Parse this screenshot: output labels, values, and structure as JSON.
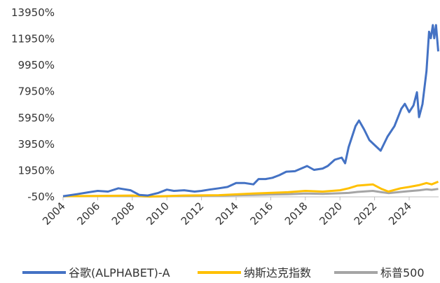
{
  "chart_data": {
    "type": "line",
    "xlim": [
      2004,
      2025.7
    ],
    "xticks": [
      2004,
      2006,
      2008,
      2010,
      2012,
      2014,
      2016,
      2018,
      2020,
      2022,
      2024
    ],
    "ylim": [
      -50,
      13950
    ],
    "yticks": [
      {
        "value": -50,
        "label": "-50%"
      },
      {
        "value": 1950,
        "label": "1950%"
      },
      {
        "value": 3950,
        "label": "3950%"
      },
      {
        "value": 5950,
        "label": "5950%"
      },
      {
        "value": 7950,
        "label": "7950%"
      },
      {
        "value": 9950,
        "label": "9950%"
      },
      {
        "value": 11950,
        "label": "11950%"
      },
      {
        "value": 13950,
        "label": "13950%"
      }
    ],
    "legend": "bottom",
    "series": [
      {
        "name": "谷歌(ALPHABET)-A",
        "color": "#4472c4",
        "x": [
          2004.0,
          2004.8,
          2005.5,
          2006.0,
          2006.6,
          2007.2,
          2007.9,
          2008.4,
          2008.9,
          2009.5,
          2010.0,
          2010.4,
          2011.0,
          2011.6,
          2012.0,
          2012.45,
          2013.0,
          2013.5,
          2014.0,
          2014.5,
          2015.0,
          2015.3,
          2015.7,
          2016.1,
          2016.5,
          2016.9,
          2017.4,
          2018.1,
          2018.5,
          2019.0,
          2019.3,
          2019.7,
          2020.1,
          2020.3,
          2020.5,
          2020.9,
          2021.1,
          2021.4,
          2021.7,
          2022.0,
          2022.35,
          2022.75,
          2023.15,
          2023.55,
          2023.75,
          2024.0,
          2024.25,
          2024.45,
          2024.57,
          2024.77,
          2025.0,
          2025.15,
          2025.25,
          2025.37,
          2025.45,
          2025.55,
          2025.68
        ],
        "values": [
          0,
          150,
          300,
          400,
          350,
          600,
          450,
          100,
          50,
          250,
          500,
          400,
          450,
          350,
          400,
          500,
          600,
          700,
          1000,
          1000,
          900,
          1300,
          1300,
          1400,
          1600,
          1860,
          1900,
          2290,
          2000,
          2100,
          2300,
          2770,
          2930,
          2500,
          3730,
          5320,
          5750,
          5060,
          4260,
          3890,
          3460,
          4530,
          5320,
          6650,
          7020,
          6390,
          6900,
          7900,
          6000,
          7000,
          9500,
          12500,
          12000,
          13000,
          12000,
          13000,
          11000
        ]
      },
      {
        "name": "纳斯达克指数",
        "color": "#ffc000",
        "x": [
          2004.0,
          2006.0,
          2008.0,
          2009.0,
          2011.0,
          2013.0,
          2015.0,
          2017.0,
          2018.0,
          2019.0,
          2020.0,
          2020.5,
          2021.0,
          2021.9,
          2022.4,
          2022.8,
          2023.5,
          2024.0,
          2024.6,
          2025.0,
          2025.3,
          2025.68
        ],
        "values": [
          0,
          20,
          50,
          -30,
          50,
          80,
          200,
          300,
          400,
          350,
          450,
          600,
          800,
          900,
          550,
          350,
          600,
          700,
          850,
          1000,
          900,
          1100
        ]
      },
      {
        "name": "标普500",
        "color": "#a5a5a5",
        "x": [
          2004.0,
          2006.0,
          2008.0,
          2009.0,
          2011.0,
          2013.0,
          2015.0,
          2017.0,
          2018.0,
          2019.0,
          2020.0,
          2020.5,
          2021.0,
          2021.9,
          2022.4,
          2022.8,
          2023.5,
          2024.0,
          2024.6,
          2025.0,
          2025.3,
          2025.68
        ],
        "values": [
          0,
          10,
          20,
          -30,
          20,
          50,
          100,
          150,
          200,
          180,
          220,
          250,
          320,
          400,
          300,
          230,
          320,
          380,
          450,
          520,
          480,
          550
        ]
      }
    ]
  }
}
